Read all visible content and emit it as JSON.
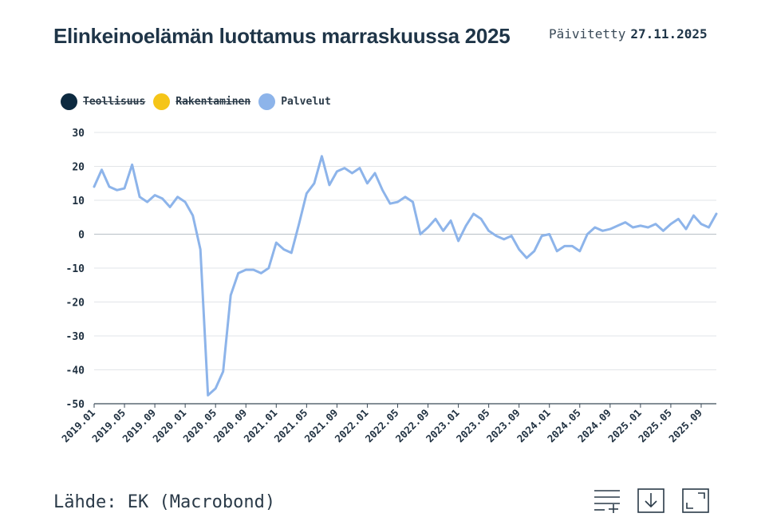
{
  "header": {
    "title": "Elinkeinoelämän luottamus marraskuussa 2025",
    "updated_label": "Päivitetty",
    "updated_date": "27.11.2025"
  },
  "footer": {
    "source": "Lähde: EK (Macrobond)"
  },
  "toolbar": {
    "menu_icon": "list-add-icon",
    "download_icon": "download-icon",
    "fullscreen_icon": "fullscreen-icon"
  },
  "chart_data": {
    "type": "line",
    "title": "Elinkeinoelämän luottamus marraskuussa 2025",
    "xlabel": "",
    "ylabel": "",
    "ylim": [
      -50,
      30
    ],
    "yticks": [
      30,
      20,
      10,
      0,
      -10,
      -20,
      -30,
      -40,
      -50
    ],
    "grid": true,
    "legend_position": "top-left",
    "x_start": "2019.01",
    "x_end": "2025.11",
    "xticks": [
      "2019.01",
      "2019.05",
      "2019.09",
      "2020.01",
      "2020.05",
      "2020.09",
      "2021.01",
      "2021.05",
      "2021.09",
      "2022.01",
      "2022.05",
      "2022.09",
      "2023.01",
      "2023.05",
      "2023.09",
      "2024.01",
      "2024.05",
      "2024.09",
      "2025.01",
      "2025.05",
      "2025.09"
    ],
    "series": [
      {
        "name": "Teollisuus",
        "color": "#0d2a40",
        "visible": false,
        "values": []
      },
      {
        "name": "Rakentaminen",
        "color": "#f5c518",
        "visible": false,
        "values": []
      },
      {
        "name": "Palvelut",
        "color": "#8db4ea",
        "visible": true,
        "values": [
          14,
          19,
          14,
          13,
          13.5,
          20.5,
          11,
          9.5,
          11.5,
          10.5,
          8,
          11,
          9.5,
          5.5,
          -4.5,
          -47.5,
          -45.5,
          -40.5,
          -18,
          -11.5,
          -10.5,
          -10.5,
          -11.5,
          -10,
          -2.5,
          -4.5,
          -5.5,
          3,
          12,
          15,
          23,
          14.5,
          18.5,
          19.5,
          18,
          19.5,
          15,
          18,
          13,
          9,
          9.5,
          11,
          9.5,
          0,
          2,
          4.5,
          1,
          4,
          -2,
          2.5,
          6,
          4.5,
          1,
          -0.5,
          -1.5,
          -0.5,
          -4.5,
          -7,
          -5,
          -0.5,
          0,
          -5,
          -3.5,
          -3.5,
          -5,
          0,
          2,
          1,
          1.5,
          2.5,
          3.5,
          2,
          2.5,
          2,
          3,
          1,
          3,
          4.5,
          1.5,
          5.5,
          3,
          2,
          6
        ]
      }
    ]
  }
}
